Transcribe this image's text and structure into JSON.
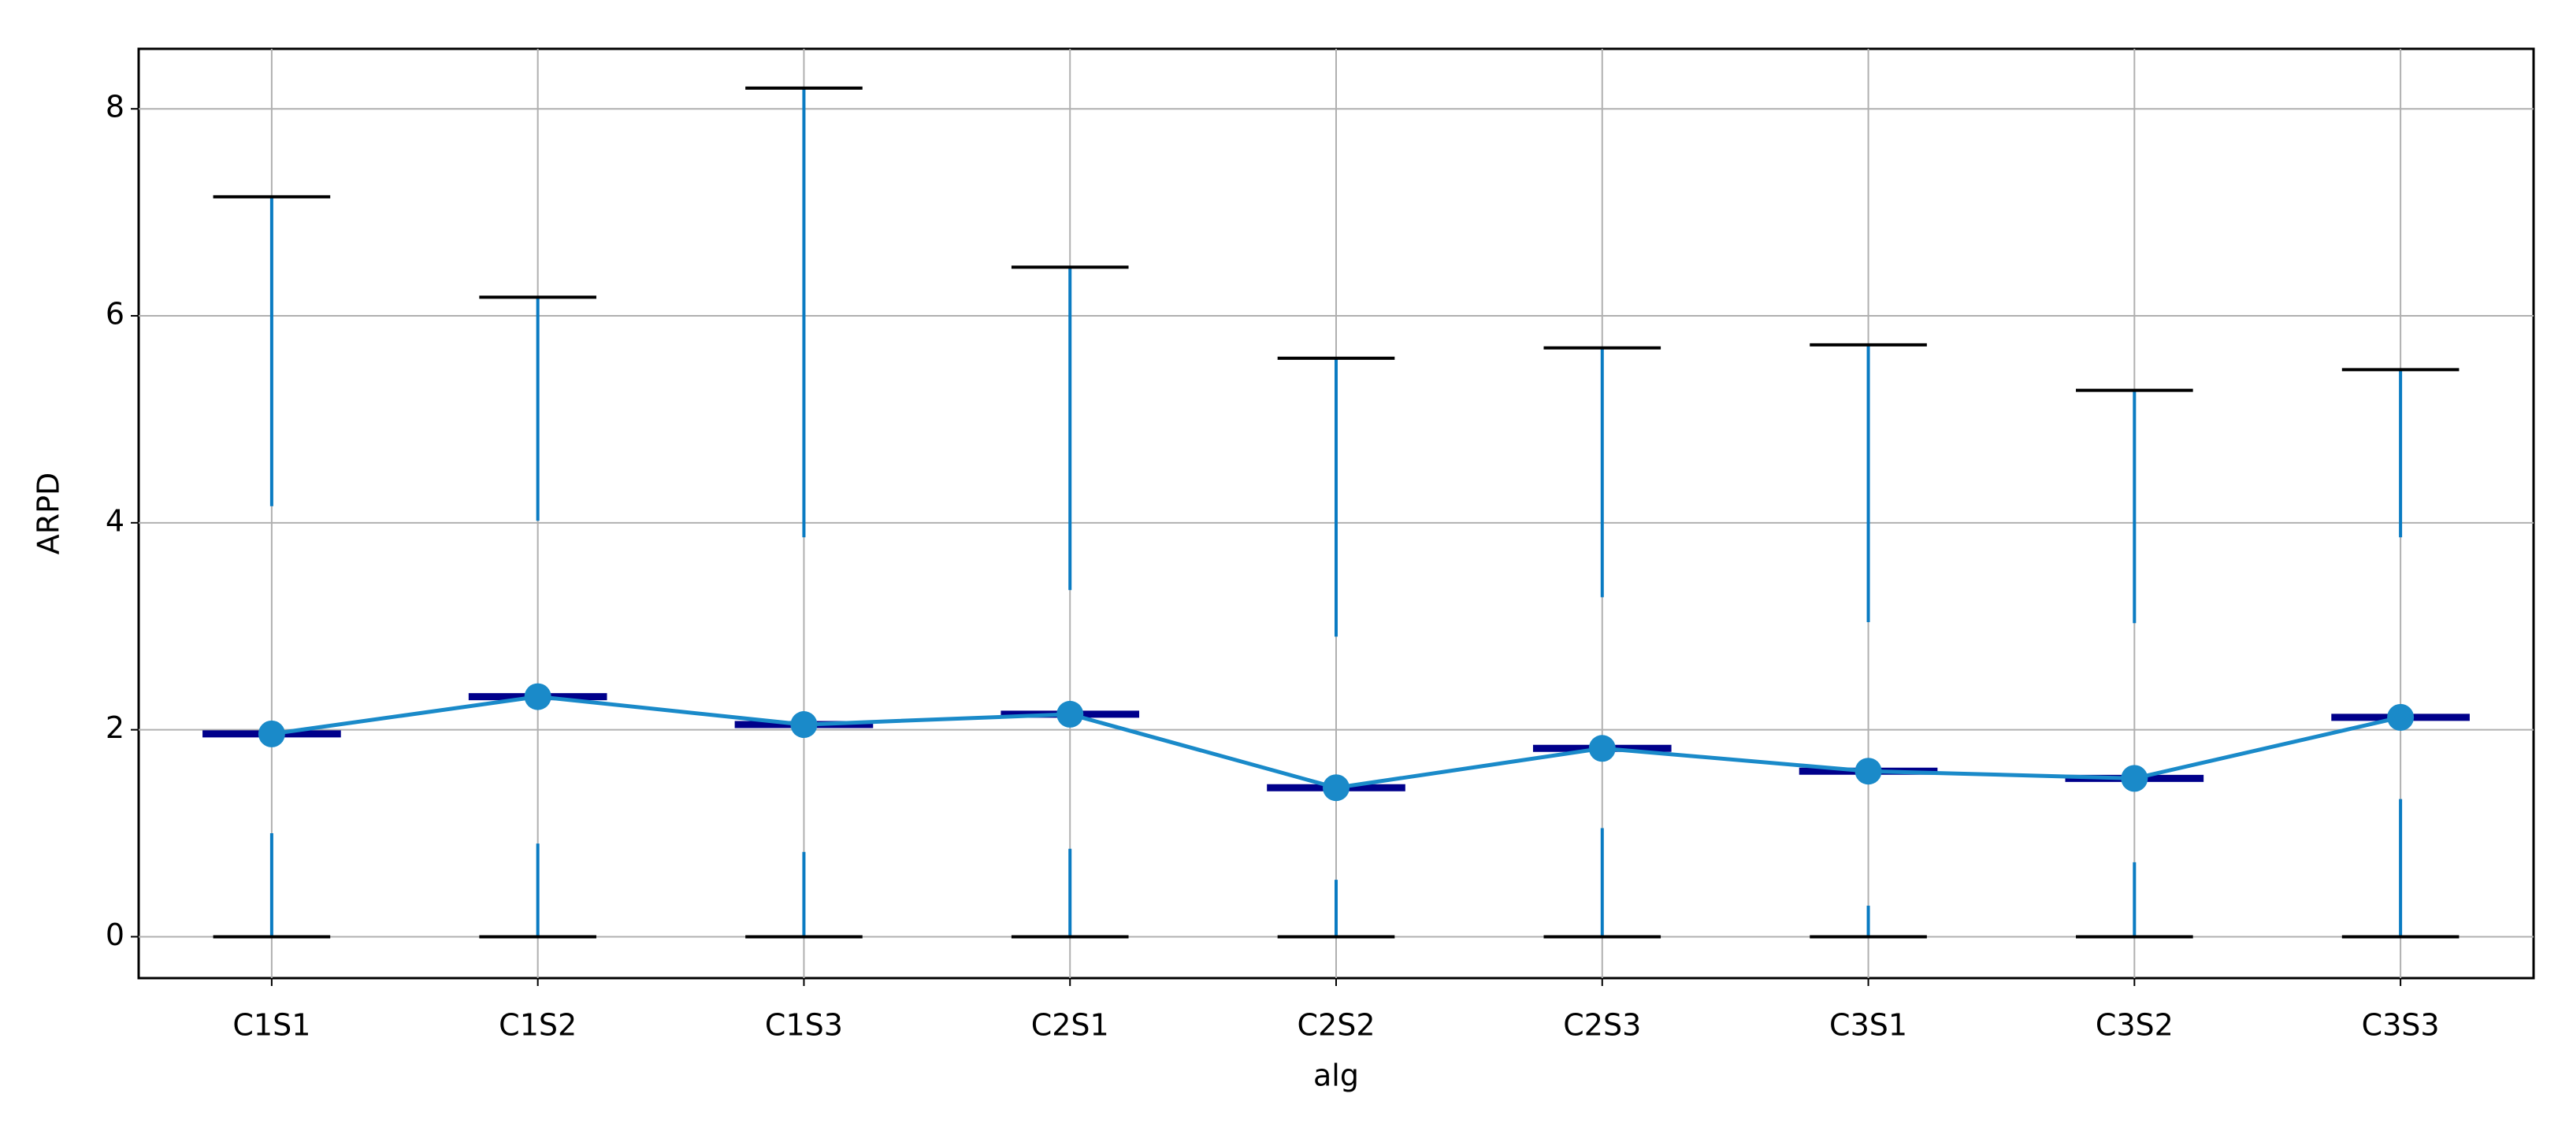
{
  "chart_data": {
    "type": "box",
    "categories": [
      "C1S1",
      "C1S2",
      "C1S3",
      "C2S1",
      "C2S2",
      "C2S3",
      "C3S1",
      "C3S2",
      "C3S3"
    ],
    "min": [
      0,
      0,
      0,
      0,
      0,
      0,
      0,
      0,
      0
    ],
    "q1": [
      1.0,
      0.9,
      0.82,
      0.85,
      0.55,
      1.05,
      0.3,
      0.72,
      1.33
    ],
    "median": [
      1.96,
      2.32,
      2.05,
      2.15,
      1.44,
      1.82,
      1.6,
      1.53,
      2.12
    ],
    "q3": [
      4.16,
      4.02,
      3.86,
      3.35,
      2.9,
      3.28,
      3.04,
      3.03,
      3.86
    ],
    "max": [
      7.15,
      6.18,
      8.2,
      6.47,
      5.59,
      5.69,
      5.72,
      5.28,
      5.48
    ],
    "means": [
      1.96,
      2.32,
      2.05,
      2.15,
      1.44,
      1.82,
      1.6,
      1.53,
      2.12
    ],
    "whisker_color": "#0a7bc2",
    "cap_color": "#000000",
    "median_color": "#00008b",
    "mean_color": "#1a8ac9",
    "xlabel": "alg",
    "ylabel": "ARPD",
    "ylim": [
      -0.4,
      8.58
    ],
    "yticks": [
      0,
      2,
      4,
      6,
      8
    ],
    "grid": true
  }
}
